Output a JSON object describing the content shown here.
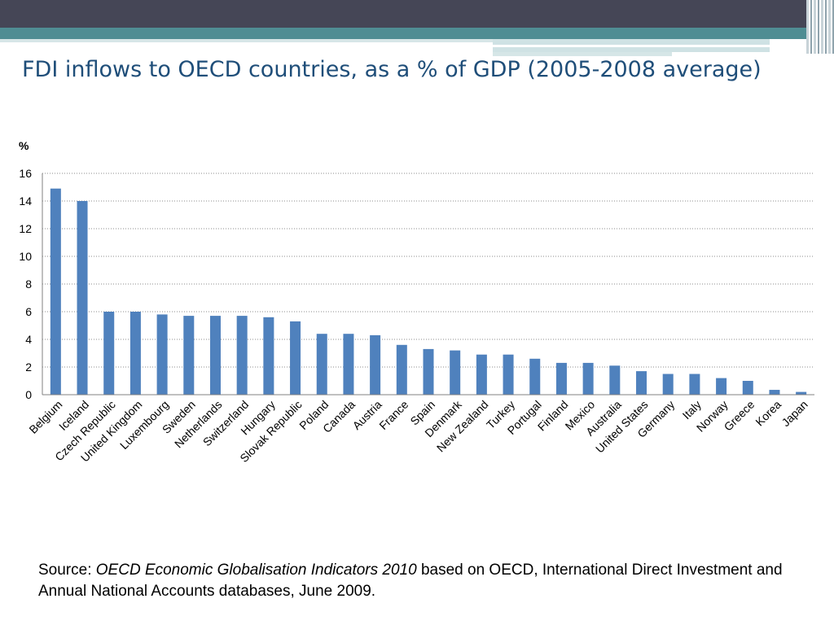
{
  "slide": {
    "title": "FDI inflows to OECD countries, as a % of GDP (2005-2008 average)"
  },
  "source": {
    "prefix": "Source:",
    "italic": "OECD Economic Globalisation Indicators 2010",
    "rest": "based on OECD, International Direct Investment and Annual National Accounts databases, June 2009."
  },
  "colors": {
    "bar": "#4f81bd",
    "header_dark": "#454656",
    "header_teal": "#4f8d93"
  },
  "chart_data": {
    "type": "bar",
    "title": "",
    "xlabel": "",
    "ylabel": "%",
    "ylim": [
      0,
      16
    ],
    "yticks": [
      0,
      2,
      4,
      6,
      8,
      10,
      12,
      14,
      16
    ],
    "grid": true,
    "categories": [
      "Belgium",
      "Iceland",
      "Czech Republic",
      "United Kingdom",
      "Luxembourg",
      "Sweden",
      "Netherlands",
      "Switzerland",
      "Hungary",
      "Slovak Republic",
      "Poland",
      "Canada",
      "Austria",
      "France",
      "Spain",
      "Denmark",
      "New Zealand",
      "Turkey",
      "Portugal",
      "Finland",
      "Mexico",
      "Australia",
      "United States",
      "Germany",
      "Italy",
      "Norway",
      "Greece",
      "Korea",
      "Japan"
    ],
    "values": [
      14.9,
      14.0,
      6.0,
      6.0,
      5.8,
      5.7,
      5.7,
      5.7,
      5.6,
      5.3,
      4.4,
      4.4,
      4.3,
      3.6,
      3.3,
      3.2,
      2.9,
      2.9,
      2.6,
      2.3,
      2.3,
      2.1,
      1.7,
      1.5,
      1.5,
      1.2,
      1.0,
      0.35,
      0.2
    ]
  }
}
